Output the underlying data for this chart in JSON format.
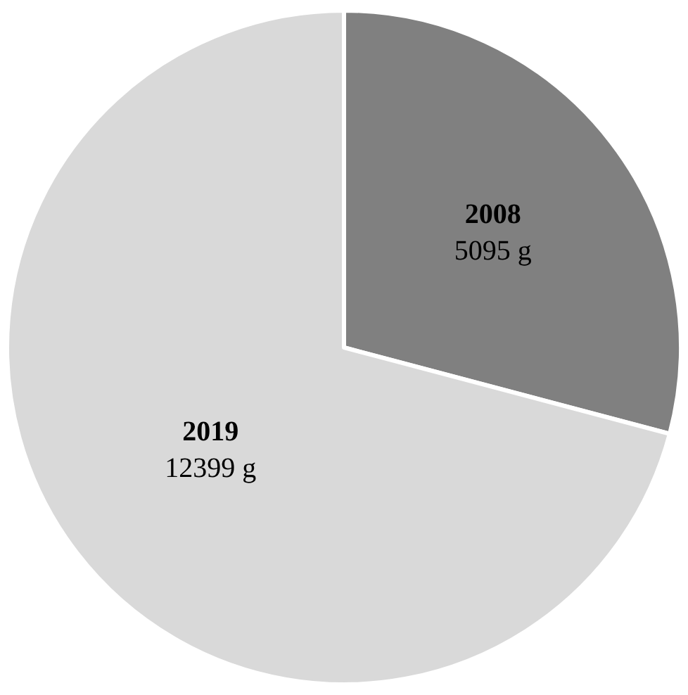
{
  "chart_data": {
    "type": "pie",
    "categories": [
      "2008",
      "2019"
    ],
    "values": [
      5095,
      12399
    ],
    "value_labels": [
      "5095 g",
      "12399 g"
    ],
    "colors": [
      "#808080",
      "#d9d9d9"
    ],
    "legend": false
  }
}
